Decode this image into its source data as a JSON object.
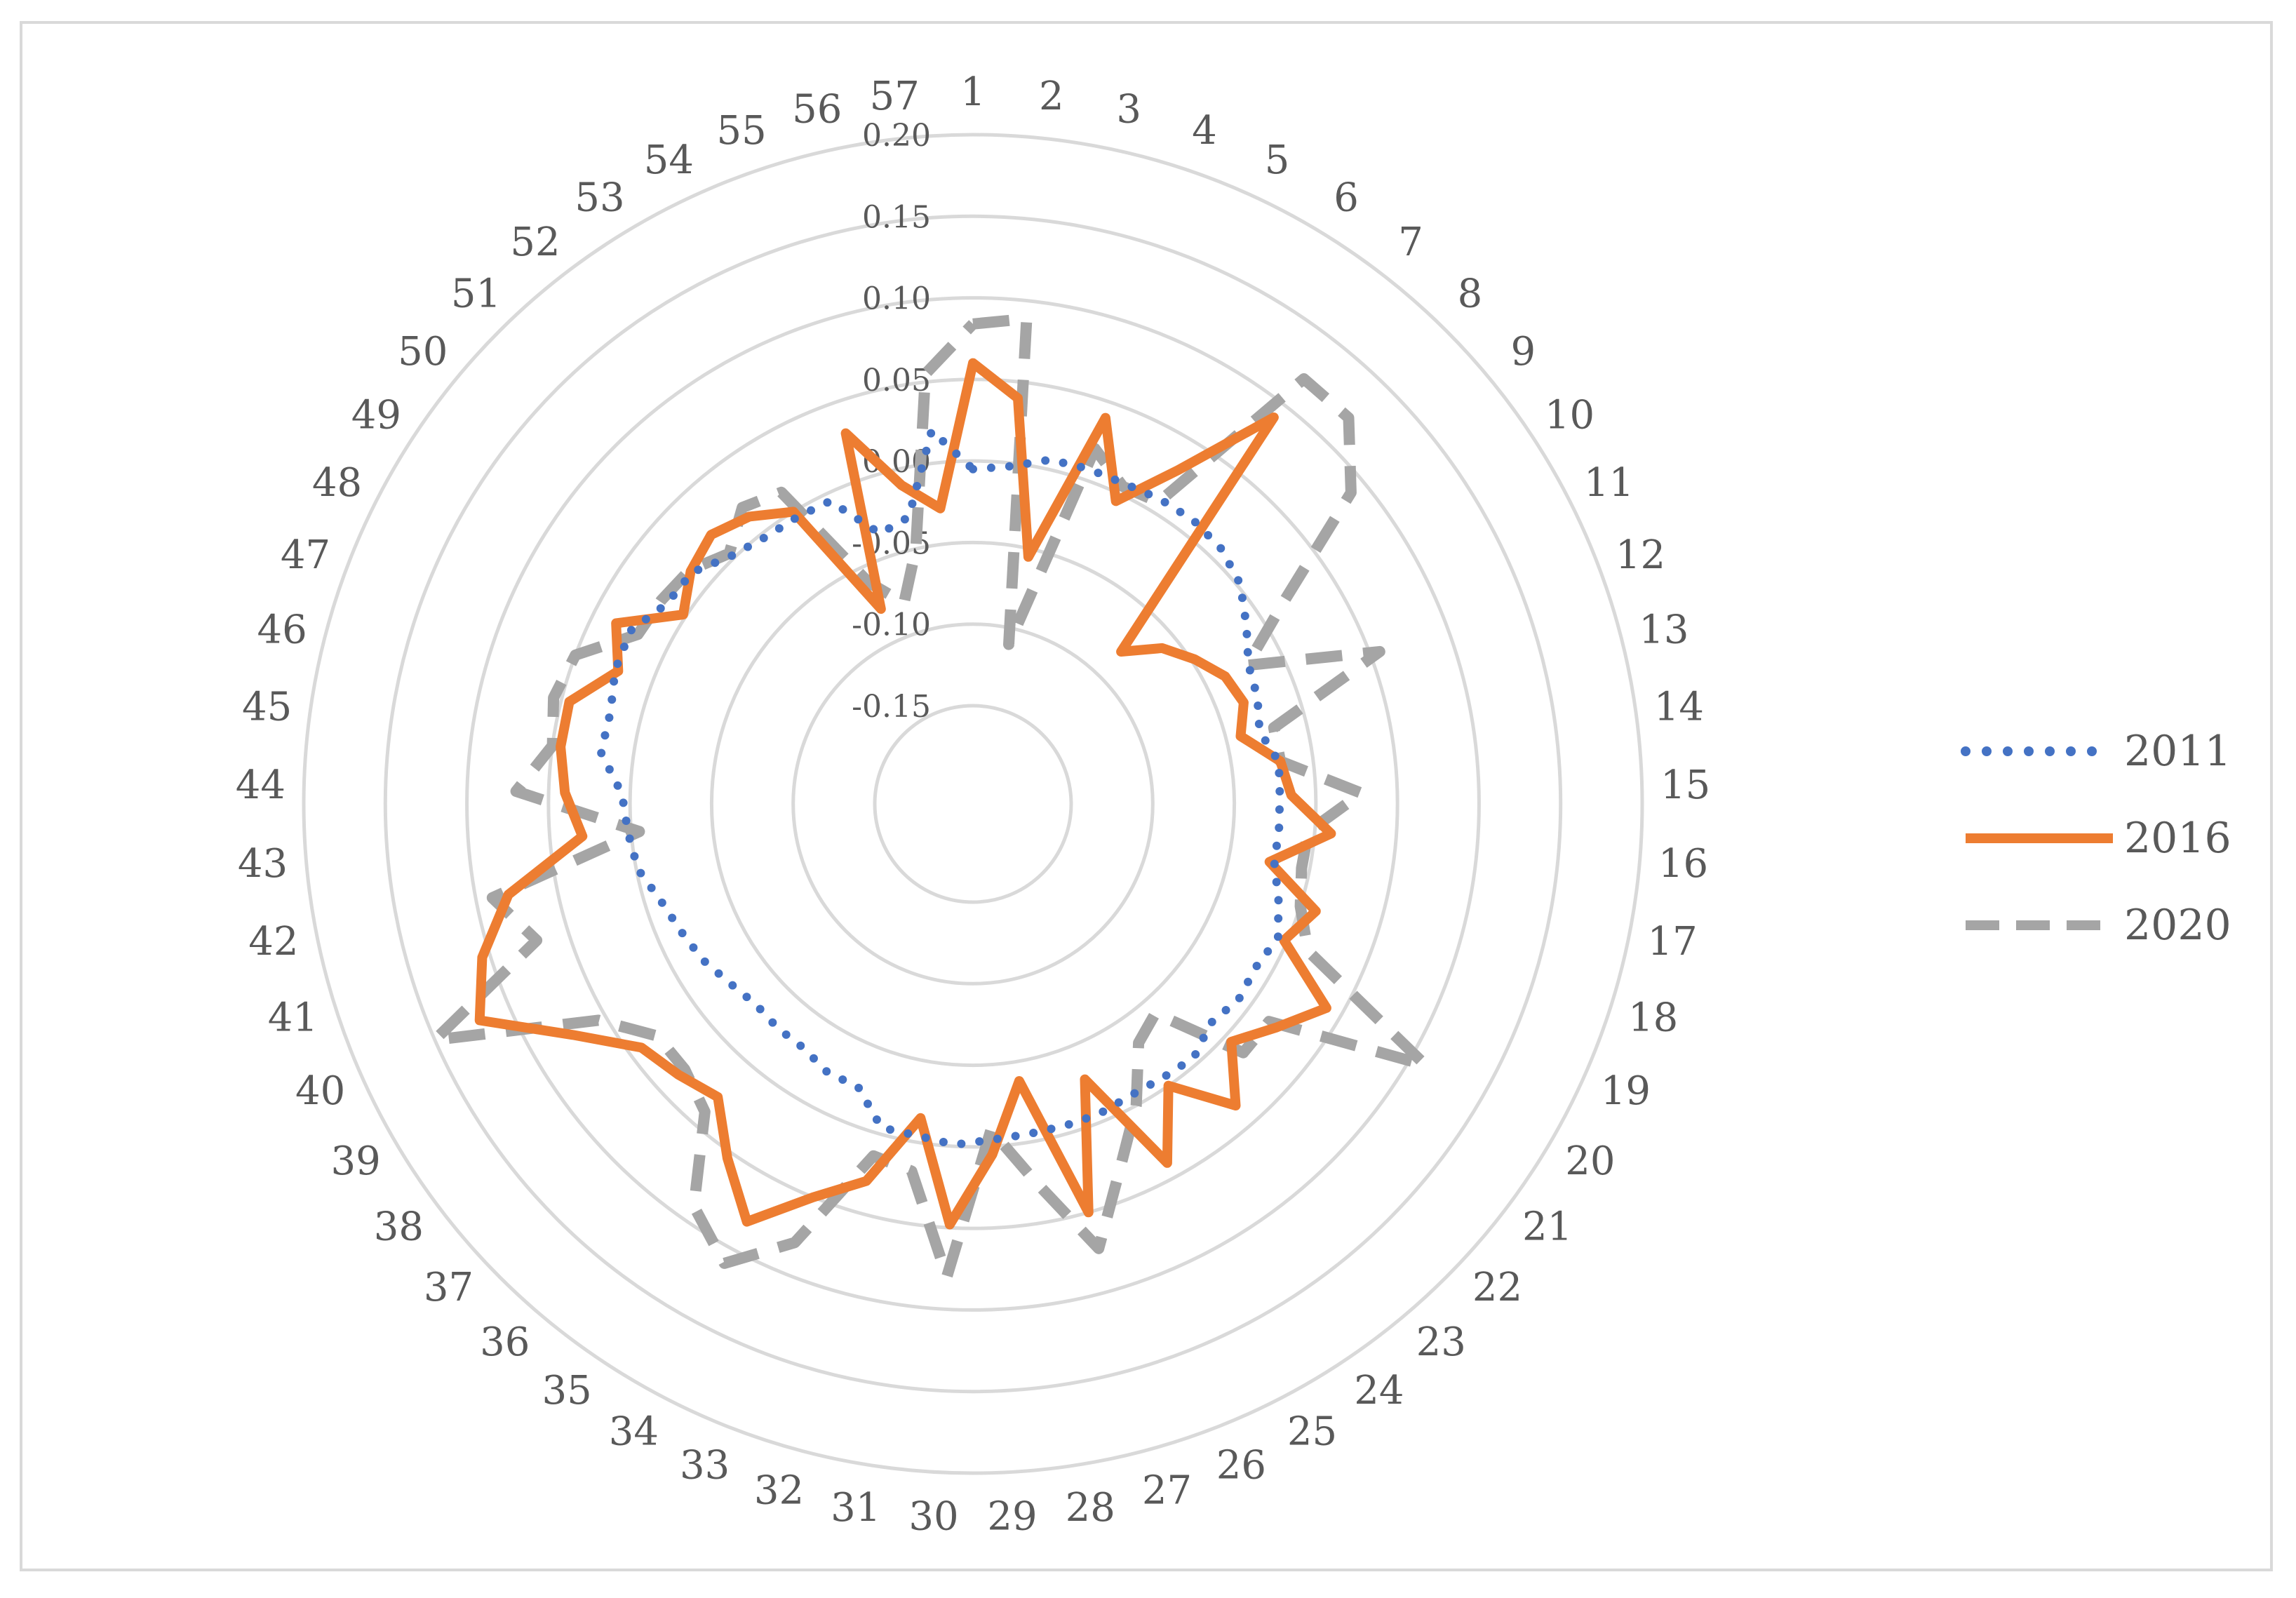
{
  "chart_data": {
    "type": "radar",
    "categories": [
      "1",
      "2",
      "3",
      "4",
      "5",
      "6",
      "7",
      "8",
      "9",
      "10",
      "11",
      "12",
      "13",
      "14",
      "15",
      "16",
      "17",
      "18",
      "19",
      "20",
      "21",
      "22",
      "23",
      "24",
      "25",
      "26",
      "27",
      "28",
      "29",
      "30",
      "31",
      "32",
      "33",
      "34",
      "35",
      "36",
      "37",
      "38",
      "39",
      "40",
      "41",
      "42",
      "43",
      "44",
      "45",
      "46",
      "47",
      "48",
      "49",
      "50",
      "51",
      "52",
      "53",
      "54",
      "55",
      "56",
      "57"
    ],
    "rlim": [
      -0.15,
      0.2
    ],
    "ticks": [
      "-0.15",
      "-0.10",
      "-0.05",
      "0.00",
      "0.05",
      "0.10",
      "0.15",
      "0.20"
    ],
    "tick_values": [
      -0.15,
      -0.1,
      -0.05,
      0.0,
      0.05,
      0.1,
      0.15,
      0.2
    ],
    "grid": true,
    "legend_position": "right",
    "series": [
      {
        "name": "2011",
        "color": "#4472c4",
        "style": "dotted",
        "values": [
          -0.005,
          -0.002,
          0.006,
          0.007,
          0.007,
          0.009,
          0.01,
          0.008,
          0.002,
          -0.01,
          -0.021,
          -0.024,
          -0.029,
          -0.021,
          -0.022,
          -0.022,
          -0.022,
          -0.014,
          -0.006,
          -0.01,
          -0.008,
          -0.012,
          -0.004,
          -0.006,
          -0.007,
          -0.005,
          -0.005,
          -0.005,
          -0.004,
          -0.001,
          -0.004,
          -0.004,
          -0.023,
          -0.023,
          -0.028,
          -0.028,
          -0.029,
          -0.025,
          -0.019,
          -0.015,
          -0.01,
          -0.001,
          0.002,
          0.005,
          0.02,
          0.019,
          0.024,
          0.025,
          0.014,
          0.013,
          0.002,
          -0.003,
          -0.004,
          -0.005,
          -0.035,
          -0.03,
          0.02
        ]
      },
      {
        "name": "2016",
        "color": "#ed7d31",
        "style": "solid",
        "values": [
          0.06,
          0.04,
          -0.055,
          0.04,
          -0.005,
          0.03,
          0.09,
          -0.08,
          -0.06,
          -0.048,
          -0.037,
          -0.033,
          -0.041,
          -0.02,
          -0.015,
          0.01,
          -0.025,
          0.01,
          -0.002,
          0.04,
          0.021,
          0.005,
          0.035,
          0.0,
          0.04,
          -0.028,
          0.05,
          -0.038,
          0.005,
          0.048,
          -0.015,
          0.03,
          0.05,
          0.081,
          0.054,
          0.028,
          0.035,
          0.042,
          0.073,
          0.12,
          0.105,
          0.08,
          0.03,
          0.04,
          0.045,
          0.045,
          0.022,
          0.035,
          0.002,
          0.014,
          0.02,
          0.013,
          0.0,
          -0.078,
          0.03,
          -0.01,
          -0.028
        ]
      },
      {
        "name": "2020",
        "color": "#a5a5a5",
        "style": "dashed",
        "values": [
          0.084,
          0.089,
          -0.11,
          0.02,
          0.005,
          0.007,
          0.12,
          0.12,
          0.09,
          0.018,
          -0.022,
          0.056,
          -0.02,
          -0.02,
          0.028,
          -0.004,
          -0.005,
          0.0,
          0.014,
          0.11,
          0.015,
          0.015,
          -0.04,
          -0.032,
          0.0,
          0.03,
          0.073,
          0.025,
          -0.01,
          0.08,
          0.018,
          0.014,
          0.08,
          0.11,
          0.09,
          0.04,
          0.03,
          0.03,
          0.055,
          0.15,
          0.07,
          0.09,
          -0.005,
          0.07,
          0.05,
          0.055,
          0.05,
          0.02,
          0.018,
          0.015,
          0.004,
          0.02,
          0.014,
          -0.06,
          -0.08,
          -0.05,
          0.055
        ]
      }
    ]
  }
}
